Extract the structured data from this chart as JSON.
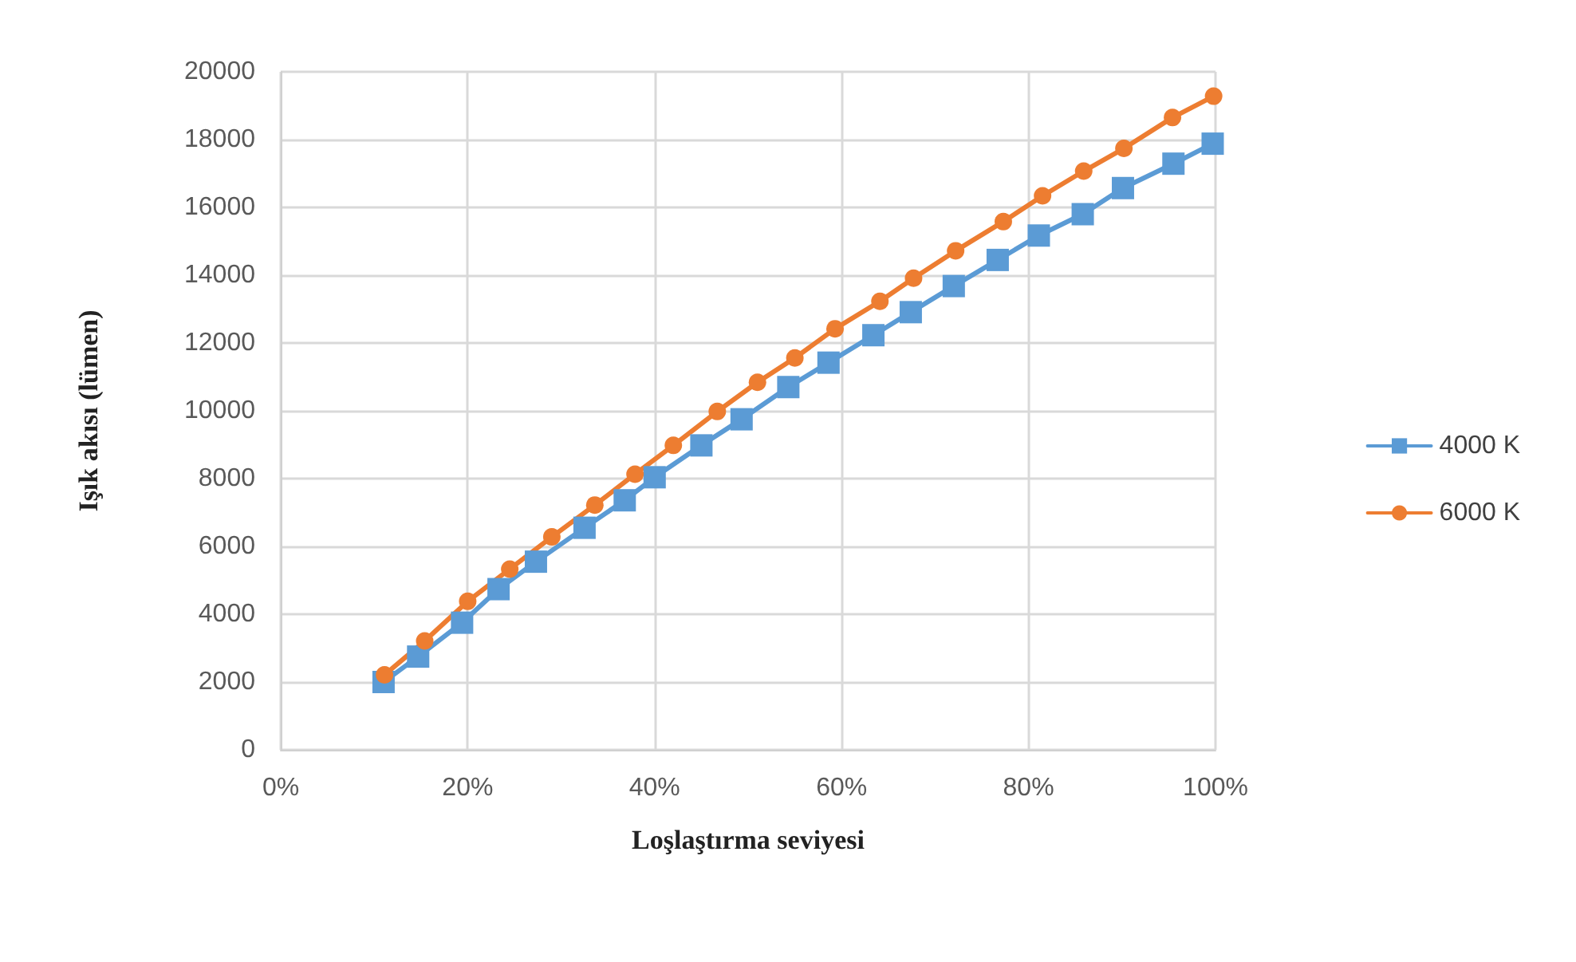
{
  "chart_data": {
    "type": "line",
    "xlabel": "Loşlaştırma seviyesi",
    "ylabel": "Işık akısı (lümen)",
    "xlim": [
      0,
      100
    ],
    "xticks": [
      {
        "value": 0,
        "label": "0%"
      },
      {
        "value": 20,
        "label": "20%"
      },
      {
        "value": 40,
        "label": "40%"
      },
      {
        "value": 60,
        "label": "60%"
      },
      {
        "value": 80,
        "label": "80%"
      },
      {
        "value": 100,
        "label": "100%"
      }
    ],
    "ylim": [
      0,
      20000
    ],
    "yticks": [
      0,
      2000,
      4000,
      6000,
      8000,
      10000,
      12000,
      14000,
      16000,
      18000,
      20000
    ],
    "grid": true,
    "legend": "right",
    "line_style": "solid",
    "series": [
      {
        "name": "4000 K",
        "color": "#5b9bd5",
        "marker": "square",
        "x": [
          11,
          14.7,
          19.4,
          23.3,
          27.3,
          32.5,
          36.8,
          40,
          45,
          49.3,
          54.3,
          58.6,
          63.4,
          67.4,
          72,
          76.7,
          81.1,
          85.8,
          90.1,
          95.5,
          99.7
        ],
        "values": [
          2000,
          2750,
          3750,
          4740,
          5550,
          6550,
          7360,
          8040,
          8980,
          9750,
          10700,
          11420,
          12230,
          12910,
          13680,
          14450,
          15170,
          15800,
          16570,
          17290,
          17880
        ]
      },
      {
        "name": "6000 K",
        "color": "#ed7d31",
        "marker": "circle",
        "x": [
          11.1,
          15.4,
          20,
          24.5,
          29,
          33.6,
          37.9,
          42,
          46.7,
          51,
          55,
          59.3,
          64.1,
          67.7,
          72.2,
          77.3,
          81.5,
          85.9,
          90.2,
          95.4,
          99.8
        ],
        "values": [
          2210,
          3210,
          4380,
          5330,
          6280,
          7220,
          8130,
          8980,
          9980,
          10840,
          11560,
          12420,
          13230,
          13910,
          14720,
          15580,
          16340,
          17070,
          17740,
          18650,
          19280
        ]
      }
    ]
  }
}
